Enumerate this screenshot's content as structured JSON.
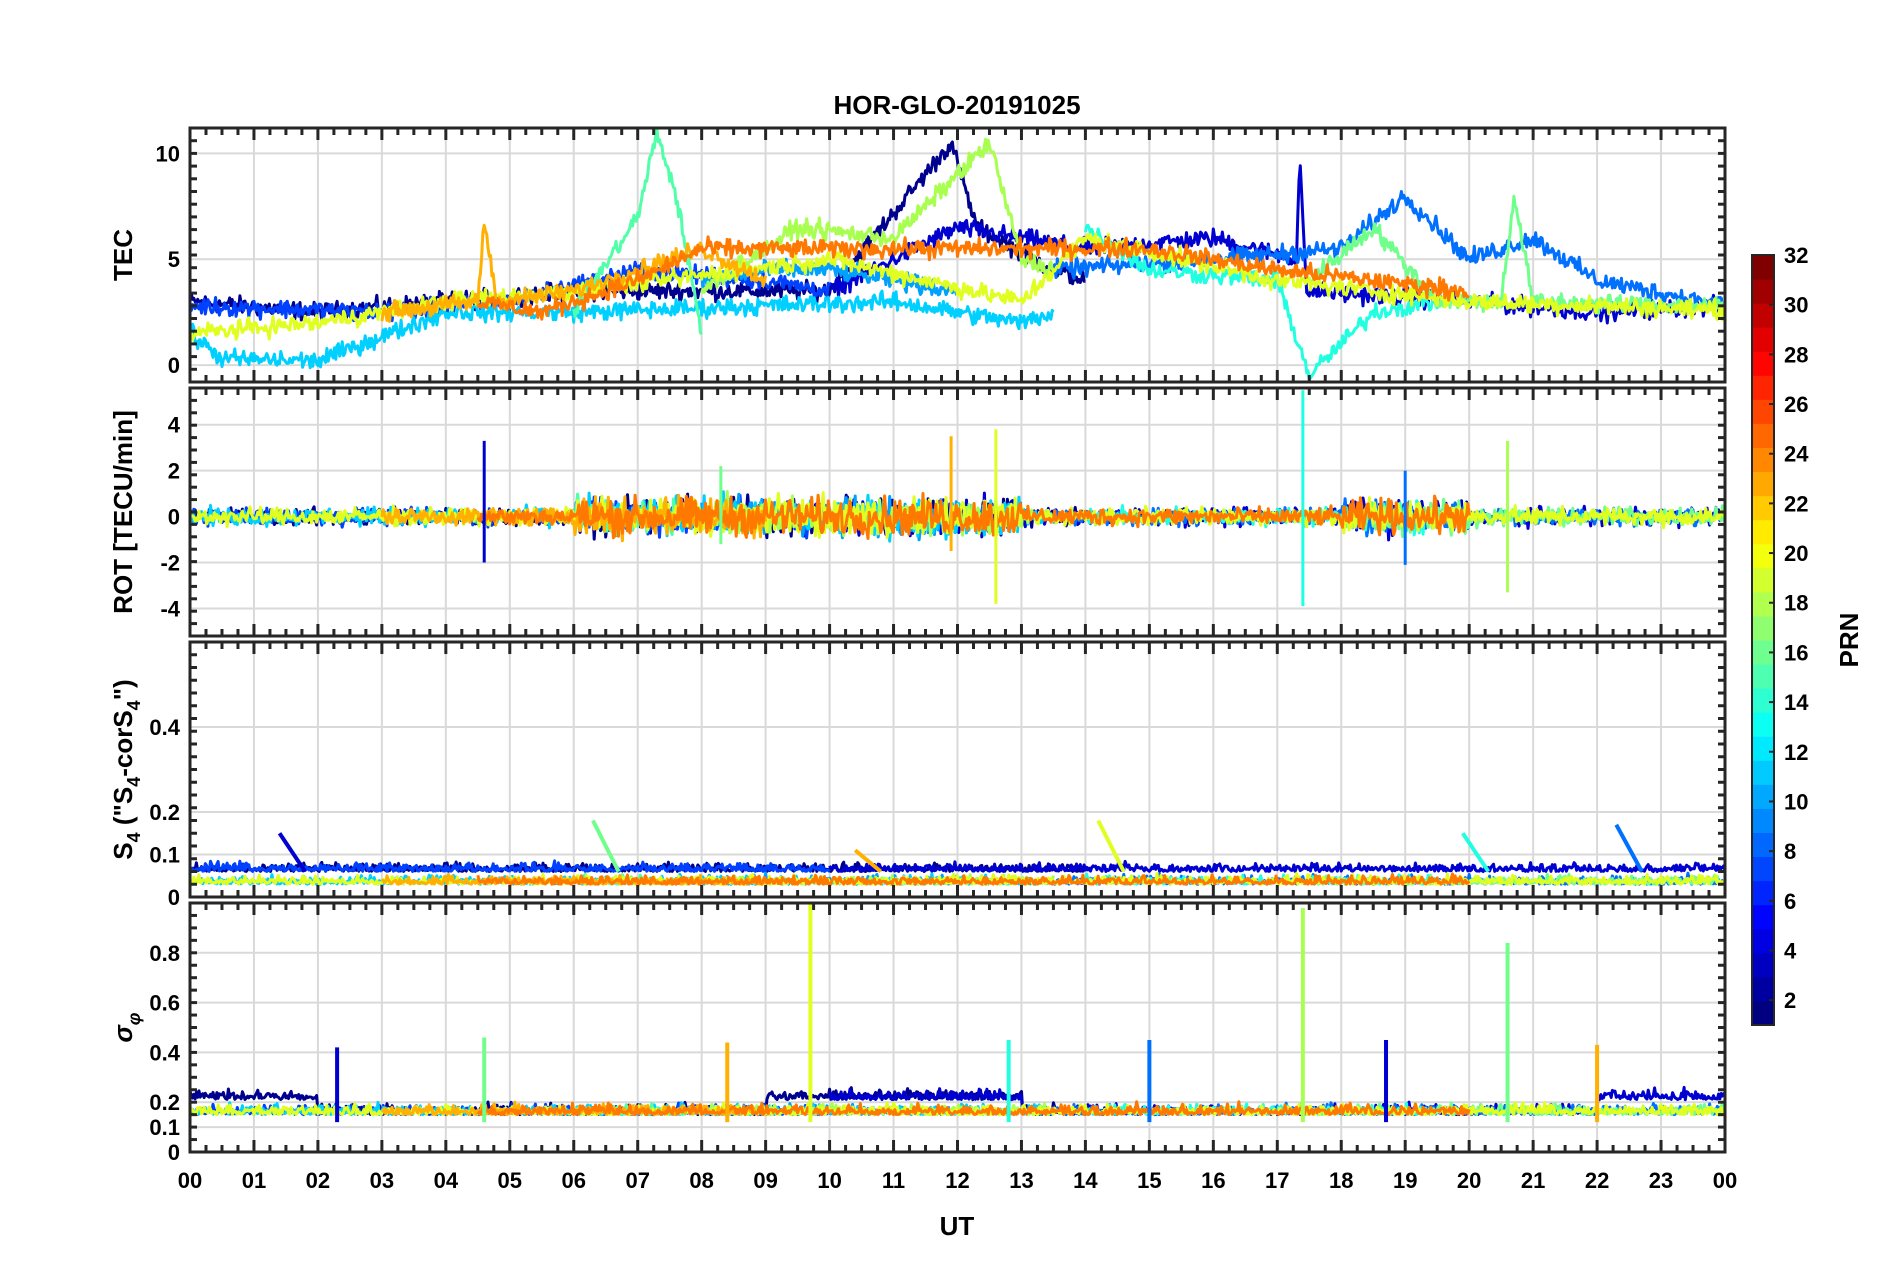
{
  "chart_data": {
    "type": "line",
    "title": "HOR-GLO-20191025",
    "xlabel": "UT",
    "x_ticks": [
      "00",
      "01",
      "02",
      "03",
      "04",
      "05",
      "06",
      "07",
      "08",
      "09",
      "10",
      "11",
      "12",
      "13",
      "14",
      "15",
      "16",
      "17",
      "18",
      "19",
      "20",
      "21",
      "22",
      "23",
      "00"
    ],
    "xlim": [
      0,
      24
    ],
    "grid": true,
    "panels": [
      {
        "name": "tec",
        "ylabel": "TEC",
        "ylim": [
          -0.8,
          11.2
        ],
        "yticks": [
          0,
          5,
          10
        ],
        "ytick_labels": [
          "0",
          "5",
          "10"
        ],
        "baseline": 3.2,
        "noise": 0.35
      },
      {
        "name": "rot",
        "ylabel": "ROT [TECU/min]",
        "ylim": [
          -5.2,
          5.6
        ],
        "yticks": [
          -4,
          -2,
          0,
          2,
          4
        ],
        "ytick_labels": [
          "-4",
          "-2",
          "0",
          "2",
          "4"
        ],
        "baseline": 0,
        "noise": 0.3
      },
      {
        "name": "s4",
        "ylabel": "S4 (\"S4-corS4\")",
        "ylabel_parts": {
          "s": "S",
          "sub": "4",
          "rest1": " (\"S",
          "sub2": "4",
          "rest2": "-corS",
          "sub3": "4",
          "rest3": "\")"
        },
        "ylim": [
          0,
          0.6
        ],
        "yticks": [
          0,
          0.1,
          0.2,
          0.4
        ],
        "ytick_labels": [
          "0",
          "0.1",
          "0.2",
          "0.4"
        ],
        "baseline": 0.03,
        "noise": 0.015
      },
      {
        "name": "sigma",
        "ylabel": "σφ",
        "ylabel_parts": {
          "s": "σ",
          "sub": "φ"
        },
        "ylim": [
          0,
          1.0
        ],
        "yticks": [
          0,
          0.1,
          0.2,
          0.4,
          0.6,
          0.8
        ],
        "ytick_labels": [
          "0",
          "0.1",
          "0.2",
          "0.4",
          "0.6",
          "0.8"
        ],
        "baseline": 0.15,
        "noise": 0.03
      }
    ],
    "colorbar": {
      "label": "PRN",
      "range": [
        1,
        32
      ],
      "ticks": [
        2,
        4,
        6,
        8,
        10,
        12,
        14,
        16,
        18,
        20,
        22,
        24,
        26,
        28,
        30,
        32
      ],
      "tick_labels": [
        "2",
        "4",
        "6",
        "8",
        "10",
        "12",
        "14",
        "16",
        "18",
        "20",
        "22",
        "24",
        "26",
        "28",
        "30",
        "32"
      ],
      "colormap": "jet"
    },
    "series": [
      {
        "prn": 1,
        "color": "#00008f",
        "start": 0.0,
        "end": 14.0,
        "tec_level": 3.0,
        "tec_points": [
          [
            0,
            3.0
          ],
          [
            2,
            2.5
          ],
          [
            6,
            3.5
          ],
          [
            10,
            3.5
          ],
          [
            11.9,
            10.5
          ],
          [
            12.3,
            6.5
          ],
          [
            13.5,
            4.5
          ],
          [
            14,
            4.0
          ]
        ]
      },
      {
        "prn": 3,
        "color": "#0000d0",
        "start": 10.0,
        "end": 24.0,
        "tec_points": [
          [
            10,
            3.5
          ],
          [
            12,
            6.5
          ],
          [
            14,
            5.5
          ],
          [
            16,
            6.0
          ],
          [
            17.3,
            5.0
          ],
          [
            17.35,
            10.0
          ],
          [
            17.45,
            3.5
          ],
          [
            20,
            3.0
          ],
          [
            22,
            2.5
          ],
          [
            24,
            2.8
          ]
        ]
      },
      {
        "prn": 5,
        "color": "#0040ff",
        "start": 0.0,
        "end": 10.0,
        "tec_points": [
          [
            0,
            2.8
          ],
          [
            3,
            2.5
          ],
          [
            5,
            3.0
          ],
          [
            7,
            4.5
          ],
          [
            9,
            4.0
          ],
          [
            10,
            3.5
          ]
        ]
      },
      {
        "prn": 7,
        "color": "#0070ff",
        "start": 13.5,
        "end": 24.0,
        "tec_points": [
          [
            13.5,
            4.5
          ],
          [
            16,
            5.0
          ],
          [
            18,
            5.5
          ],
          [
            19,
            8.0
          ],
          [
            20,
            5.0
          ],
          [
            21,
            6.0
          ],
          [
            22,
            4.0
          ],
          [
            24,
            2.8
          ]
        ]
      },
      {
        "prn": 10,
        "color": "#00a0ff",
        "start": 8.0,
        "end": 12.0,
        "tec_points": [
          [
            8,
            4.0
          ],
          [
            9,
            4.5
          ],
          [
            10,
            4.5
          ],
          [
            11,
            4.0
          ],
          [
            12,
            3.5
          ]
        ]
      },
      {
        "prn": 12,
        "color": "#00d0ff",
        "start": 0.0,
        "end": 13.5,
        "tec_level": 1.0,
        "tec_points": [
          [
            0,
            1.5
          ],
          [
            0.5,
            0.3
          ],
          [
            2,
            0.2
          ],
          [
            4,
            2.5
          ],
          [
            6,
            2.5
          ],
          [
            11,
            3.0
          ],
          [
            13,
            2.0
          ],
          [
            13.5,
            2.5
          ]
        ]
      },
      {
        "prn": 13,
        "color": "#20ffe0",
        "start": 14.0,
        "end": 19.5,
        "tec_points": [
          [
            14,
            6.5
          ],
          [
            15,
            4.5
          ],
          [
            17,
            4.0
          ],
          [
            17.5,
            -0.5
          ],
          [
            18.5,
            2.5
          ],
          [
            19.5,
            3.0
          ]
        ]
      },
      {
        "prn": 15,
        "color": "#50ffa8",
        "start": 6.0,
        "end": 8.0,
        "tec_points": [
          [
            6,
            2.5
          ],
          [
            7,
            7.0
          ],
          [
            7.3,
            11.0
          ],
          [
            7.6,
            8.0
          ],
          [
            8,
            1.5
          ]
        ]
      },
      {
        "prn": 16,
        "color": "#70ff8a",
        "start": 17.5,
        "end": 24.0,
        "tec_points": [
          [
            17.5,
            4.0
          ],
          [
            18.5,
            6.5
          ],
          [
            19.5,
            3.0
          ],
          [
            20.5,
            3.0
          ],
          [
            20.7,
            8.0
          ],
          [
            21,
            3.0
          ],
          [
            24,
            2.8
          ]
        ]
      },
      {
        "prn": 18,
        "color": "#a8ff50",
        "start": 8.0,
        "end": 13.5,
        "tec_points": [
          [
            8,
            3.5
          ],
          [
            9.5,
            6.5
          ],
          [
            11,
            6.0
          ],
          [
            12.5,
            10.5
          ],
          [
            13,
            5.0
          ],
          [
            13.5,
            4.5
          ]
        ]
      },
      {
        "prn": 20,
        "color": "#e0ff20",
        "start": 0.0,
        "end": 24.0,
        "tec_points": [
          [
            0,
            1.5
          ],
          [
            2,
            2.0
          ],
          [
            4,
            3.0
          ],
          [
            6,
            3.5
          ],
          [
            10,
            5.0
          ],
          [
            13,
            3.0
          ],
          [
            14,
            6.0
          ],
          [
            17,
            4.0
          ],
          [
            20,
            3.0
          ],
          [
            24,
            2.6
          ]
        ]
      },
      {
        "prn": 22,
        "color": "#ffb000",
        "start": 3.0,
        "end": 9.0,
        "tec_points": [
          [
            3,
            2.5
          ],
          [
            4.5,
            3.0
          ],
          [
            4.6,
            6.8
          ],
          [
            4.8,
            3.0
          ],
          [
            6,
            3.5
          ],
          [
            8,
            5.5
          ],
          [
            9,
            4.0
          ]
        ]
      },
      {
        "prn": 24,
        "color": "#ff7800",
        "start": 4.5,
        "end": 20.0,
        "tec_points": [
          [
            4.5,
            3.0
          ],
          [
            5.5,
            2.5
          ],
          [
            7,
            4.0
          ],
          [
            8,
            5.5
          ],
          [
            15,
            5.5
          ],
          [
            17,
            4.5
          ],
          [
            18.5,
            4.0
          ],
          [
            20,
            3.5
          ]
        ]
      }
    ],
    "spikes": {
      "rot": [
        [
          4.6,
          3.3,
          -2.0
        ],
        [
          8.3,
          2.2,
          -1.2
        ],
        [
          11.9,
          3.5,
          -1.5
        ],
        [
          12.6,
          3.8,
          -3.8
        ],
        [
          17.4,
          5.5,
          -3.9
        ],
        [
          19.0,
          2.0,
          -2.1
        ],
        [
          20.6,
          3.3,
          -3.3
        ]
      ],
      "sigma": [
        [
          2.3,
          0.42
        ],
        [
          4.6,
          0.46
        ],
        [
          8.4,
          0.44
        ],
        [
          9.7,
          1.0
        ],
        [
          12.8,
          0.45
        ],
        [
          15.0,
          0.45
        ],
        [
          17.4,
          0.98
        ],
        [
          18.7,
          0.45
        ],
        [
          20.6,
          0.84
        ],
        [
          22.0,
          0.43
        ]
      ],
      "s4": [
        [
          1.4,
          0.15
        ],
        [
          6.3,
          0.18
        ],
        [
          10.4,
          0.11
        ],
        [
          14.2,
          0.18
        ],
        [
          19.9,
          0.15
        ],
        [
          22.3,
          0.17
        ]
      ]
    }
  }
}
